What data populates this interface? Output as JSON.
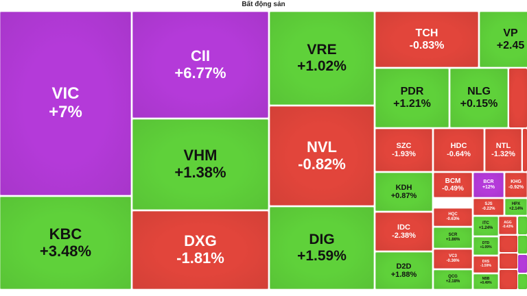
{
  "chart_data": {
    "type": "treemap",
    "title": "Bất động sản",
    "colors": {
      "purple": "#b43ad9",
      "green": "#5fd13a",
      "red": "#e2453b"
    },
    "tiles": [
      {
        "ticker": "VIC",
        "change": "+7%",
        "color": "purple"
      },
      {
        "ticker": "KBC",
        "change": "+3.48%",
        "color": "green"
      },
      {
        "ticker": "CII",
        "change": "+6.77%",
        "color": "purple"
      },
      {
        "ticker": "VHM",
        "change": "+1.38%",
        "color": "green"
      },
      {
        "ticker": "DXG",
        "change": "-1.81%",
        "color": "red"
      },
      {
        "ticker": "VRE",
        "change": "+1.02%",
        "color": "green"
      },
      {
        "ticker": "NVL",
        "change": "-0.82%",
        "color": "red"
      },
      {
        "ticker": "DIG",
        "change": "+1.59%",
        "color": "green"
      },
      {
        "ticker": "TCH",
        "change": "-0.83%",
        "color": "red"
      },
      {
        "ticker": "VP",
        "change": "+2.45",
        "color": "green"
      },
      {
        "ticker": "PDR",
        "change": "+1.21%",
        "color": "green"
      },
      {
        "ticker": "NLG",
        "change": "+0.15%",
        "color": "green"
      },
      {
        "ticker": "SZC",
        "change": "-1.93%",
        "color": "red"
      },
      {
        "ticker": "HDC",
        "change": "-0.64%",
        "color": "red"
      },
      {
        "ticker": "NTL",
        "change": "-1.32%",
        "color": "red"
      },
      {
        "ticker": "KDH",
        "change": "+0.87%",
        "color": "green"
      },
      {
        "ticker": "BCM",
        "change": "-0.49%",
        "color": "red"
      },
      {
        "ticker": "BCR",
        "change": "+12%",
        "color": "purple"
      },
      {
        "ticker": "KHG",
        "change": "-0.92%",
        "color": "red"
      },
      {
        "ticker": "IDC",
        "change": "-2.38%",
        "color": "red"
      },
      {
        "ticker": "D2D",
        "change": "+1.88%",
        "color": "green"
      },
      {
        "ticker": "HQC",
        "change": "-0.63%",
        "color": "red"
      },
      {
        "ticker": "SJS",
        "change": "-0.22%",
        "color": "red"
      },
      {
        "ticker": "HPX",
        "change": "+2.14%",
        "color": "green"
      },
      {
        "ticker": "SCR",
        "change": "+1.86%",
        "color": "green"
      },
      {
        "ticker": "VC3",
        "change": "-0.36%",
        "color": "red"
      },
      {
        "ticker": "QCG",
        "change": "+2.18%",
        "color": "green"
      },
      {
        "ticker": "ITC",
        "change": "+1.24%",
        "color": "green"
      },
      {
        "ticker": "AGG",
        "change": "-0.43%",
        "color": "red"
      },
      {
        "ticker": "DTD",
        "change": "+1.09%",
        "color": "green"
      },
      {
        "ticker": "DXS",
        "change": "-1.59%",
        "color": "red"
      },
      {
        "ticker": "NBB",
        "change": "+0.49%",
        "color": "green"
      }
    ]
  }
}
